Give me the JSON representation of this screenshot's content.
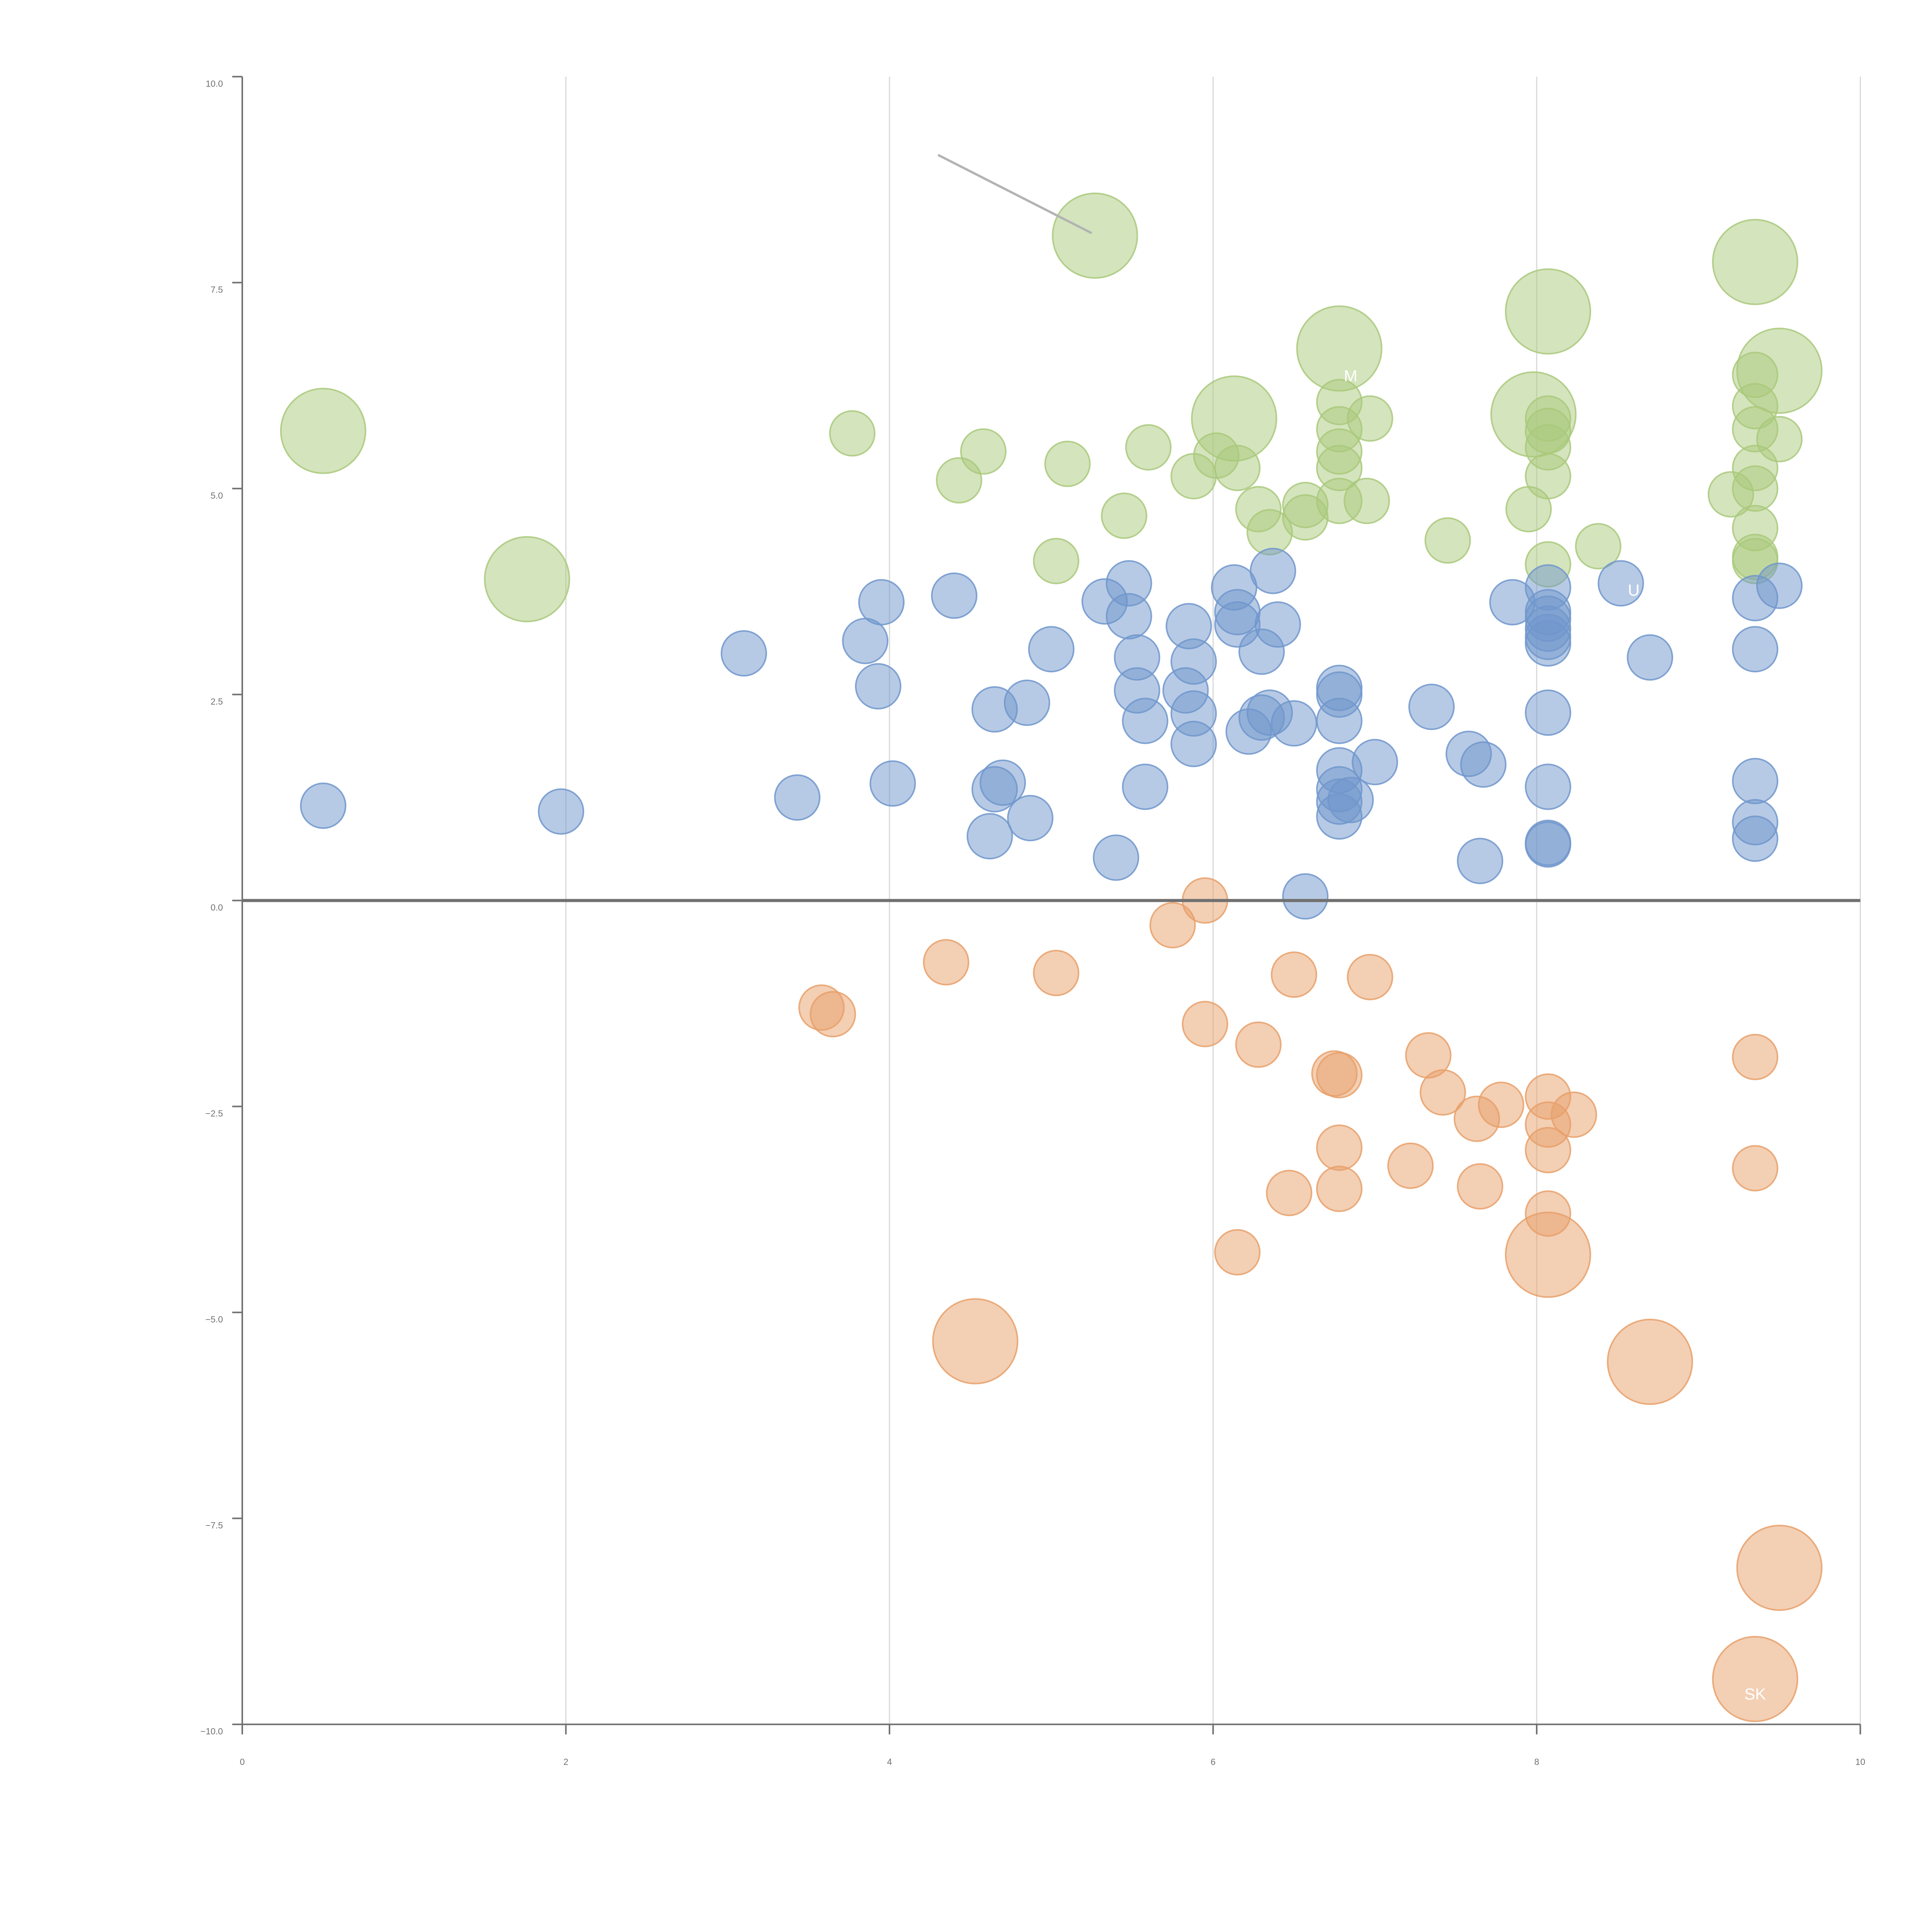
{
  "chart_data": {
    "type": "scatter",
    "title": "",
    "xlabel": "",
    "ylabel": "",
    "xlim": [
      0,
      10
    ],
    "ylim": [
      -10,
      10
    ],
    "x_ticks": [
      "0",
      "2",
      "4",
      "6",
      "8",
      "10"
    ],
    "y_ticks": [
      "10.0",
      "7.5",
      "5.0",
      "2.5",
      "0.0",
      "−2.5",
      "−5.0",
      "−7.5",
      "−10.0"
    ],
    "colors": {
      "green": "#a9c97b",
      "blue": "#7096cc",
      "orange": "#e8a06a",
      "grid": "#d9d9d9",
      "axis": "#707070"
    },
    "series": [
      {
        "name": "green",
        "points": [
          [
            0.5,
            5.7,
            0.85
          ],
          [
            1.76,
            3.9,
            0.85
          ],
          [
            3.77,
            5.67,
            0.45
          ],
          [
            4.43,
            5.1,
            0.45
          ],
          [
            4.58,
            5.45,
            0.45
          ],
          [
            5.03,
            4.12,
            0.45
          ],
          [
            5.1,
            5.3,
            0.45
          ],
          [
            5.27,
            8.07,
            0.85
          ],
          [
            5.45,
            4.67,
            0.45
          ],
          [
            5.6,
            5.5,
            0.45
          ],
          [
            5.88,
            5.15,
            0.45
          ],
          [
            6.02,
            5.4,
            0.45
          ],
          [
            6.13,
            5.85,
            0.85
          ],
          [
            6.15,
            5.25,
            0.45
          ],
          [
            6.28,
            4.75,
            0.45
          ],
          [
            6.35,
            4.47,
            0.45
          ],
          [
            6.57,
            4.8,
            0.45
          ],
          [
            6.57,
            4.65,
            0.45
          ],
          [
            6.78,
            6.7,
            0.85
          ],
          [
            6.78,
            6.05,
            0.45
          ],
          [
            6.78,
            5.72,
            0.45
          ],
          [
            6.78,
            5.45,
            0.45
          ],
          [
            6.78,
            5.25,
            0.45
          ],
          [
            6.78,
            4.85,
            0.45
          ],
          [
            6.97,
            5.85,
            0.45
          ],
          [
            6.95,
            4.85,
            0.45
          ],
          [
            7.45,
            4.37,
            0.45
          ],
          [
            7.98,
            5.9,
            0.85
          ],
          [
            7.95,
            4.75,
            0.45
          ],
          [
            8.07,
            7.15,
            0.85
          ],
          [
            8.07,
            5.85,
            0.45
          ],
          [
            8.07,
            5.7,
            0.45
          ],
          [
            8.07,
            5.5,
            0.45
          ],
          [
            8.07,
            5.15,
            0.45
          ],
          [
            8.07,
            4.08,
            0.45
          ],
          [
            8.38,
            4.3,
            0.45
          ],
          [
            9.2,
            4.93,
            0.45
          ],
          [
            9.35,
            7.75,
            0.85
          ],
          [
            9.35,
            6.38,
            0.45
          ],
          [
            9.35,
            6.0,
            0.45
          ],
          [
            9.35,
            5.72,
            0.45
          ],
          [
            9.35,
            5.25,
            0.45
          ],
          [
            9.35,
            5.0,
            0.45
          ],
          [
            9.35,
            4.52,
            0.45
          ],
          [
            9.35,
            4.17,
            0.45
          ],
          [
            9.35,
            4.12,
            0.45
          ],
          [
            9.5,
            6.43,
            0.85
          ],
          [
            9.5,
            5.6,
            0.45
          ]
        ]
      },
      {
        "name": "blue",
        "points": [
          [
            0.5,
            1.15,
            0.45
          ],
          [
            1.97,
            1.08,
            0.45
          ],
          [
            3.1,
            3.0,
            0.45
          ],
          [
            3.43,
            1.25,
            0.45
          ],
          [
            3.85,
            3.15,
            0.45
          ],
          [
            3.93,
            2.6,
            0.45
          ],
          [
            3.95,
            3.62,
            0.45
          ],
          [
            4.02,
            1.42,
            0.45
          ],
          [
            4.4,
            3.7,
            0.45
          ],
          [
            4.62,
            0.78,
            0.45
          ],
          [
            4.65,
            2.32,
            0.45
          ],
          [
            4.65,
            1.35,
            0.45
          ],
          [
            4.7,
            1.43,
            0.45
          ],
          [
            4.85,
            2.4,
            0.45
          ],
          [
            4.87,
            1.0,
            0.45
          ],
          [
            5.0,
            3.05,
            0.45
          ],
          [
            5.33,
            3.63,
            0.45
          ],
          [
            5.4,
            0.52,
            0.45
          ],
          [
            5.48,
            3.85,
            0.45
          ],
          [
            5.48,
            3.45,
            0.45
          ],
          [
            5.53,
            2.95,
            0.45
          ],
          [
            5.53,
            2.55,
            0.45
          ],
          [
            5.58,
            2.18,
            0.45
          ],
          [
            5.58,
            1.38,
            0.45
          ],
          [
            5.83,
            2.55,
            0.45
          ],
          [
            5.85,
            3.33,
            0.45
          ],
          [
            5.88,
            2.9,
            0.45
          ],
          [
            5.88,
            2.27,
            0.45
          ],
          [
            5.88,
            1.9,
            0.45
          ],
          [
            6.13,
            3.8,
            0.45
          ],
          [
            6.15,
            3.5,
            0.45
          ],
          [
            6.15,
            3.35,
            0.45
          ],
          [
            6.22,
            2.05,
            0.45
          ],
          [
            6.3,
            3.02,
            0.45
          ],
          [
            6.3,
            2.22,
            0.45
          ],
          [
            6.35,
            2.28,
            0.45
          ],
          [
            6.37,
            4.0,
            0.45
          ],
          [
            6.4,
            3.35,
            0.45
          ],
          [
            6.5,
            2.15,
            0.45
          ],
          [
            6.57,
            0.05,
            0.45
          ],
          [
            6.78,
            2.58,
            0.45
          ],
          [
            6.78,
            2.5,
            0.45
          ],
          [
            6.78,
            2.18,
            0.45
          ],
          [
            6.78,
            1.58,
            0.45
          ],
          [
            6.78,
            1.35,
            0.45
          ],
          [
            6.78,
            1.2,
            0.45
          ],
          [
            6.78,
            1.02,
            0.45
          ],
          [
            6.85,
            1.22,
            0.45
          ],
          [
            7.0,
            1.68,
            0.45
          ],
          [
            7.35,
            2.35,
            0.45
          ],
          [
            7.58,
            1.78,
            0.45
          ],
          [
            7.65,
            0.48,
            0.45
          ],
          [
            7.67,
            1.65,
            0.45
          ],
          [
            7.85,
            3.62,
            0.45
          ],
          [
            8.07,
            3.8,
            0.45
          ],
          [
            8.07,
            3.5,
            0.45
          ],
          [
            8.07,
            3.42,
            0.45
          ],
          [
            8.07,
            3.3,
            0.45
          ],
          [
            8.07,
            3.2,
            0.45
          ],
          [
            8.07,
            3.12,
            0.45
          ],
          [
            8.07,
            2.28,
            0.45
          ],
          [
            8.07,
            1.38,
            0.45
          ],
          [
            8.07,
            0.7,
            0.45
          ],
          [
            8.07,
            0.68,
            0.45
          ],
          [
            8.52,
            3.85,
            0.45
          ],
          [
            8.7,
            2.95,
            0.45
          ],
          [
            9.35,
            3.67,
            0.45
          ],
          [
            9.35,
            3.05,
            0.45
          ],
          [
            9.35,
            1.45,
            0.45
          ],
          [
            9.35,
            0.95,
            0.45
          ],
          [
            9.35,
            0.75,
            0.45
          ],
          [
            9.5,
            3.82,
            0.45
          ]
        ]
      },
      {
        "name": "orange",
        "points": [
          [
            3.58,
            -1.3,
            0.45
          ],
          [
            3.65,
            -1.38,
            0.45
          ],
          [
            4.35,
            -0.75,
            0.45
          ],
          [
            4.53,
            -5.35,
            0.85
          ],
          [
            5.03,
            -0.88,
            0.45
          ],
          [
            5.75,
            -0.3,
            0.45
          ],
          [
            5.95,
            0.0,
            0.45
          ],
          [
            5.95,
            -1.5,
            0.45
          ],
          [
            6.15,
            -4.27,
            0.45
          ],
          [
            6.28,
            -1.75,
            0.45
          ],
          [
            6.47,
            -3.55,
            0.45
          ],
          [
            6.5,
            -0.9,
            0.45
          ],
          [
            6.75,
            -2.1,
            0.45
          ],
          [
            6.78,
            -2.12,
            0.45
          ],
          [
            6.78,
            -3.0,
            0.45
          ],
          [
            6.78,
            -3.5,
            0.45
          ],
          [
            6.97,
            -0.93,
            0.45
          ],
          [
            7.22,
            -3.22,
            0.45
          ],
          [
            7.33,
            -1.88,
            0.45
          ],
          [
            7.42,
            -2.33,
            0.45
          ],
          [
            7.63,
            -2.65,
            0.45
          ],
          [
            7.65,
            -3.47,
            0.45
          ],
          [
            7.78,
            -2.48,
            0.45
          ],
          [
            8.07,
            -2.38,
            0.45
          ],
          [
            8.07,
            -2.72,
            0.45
          ],
          [
            8.07,
            -3.03,
            0.45
          ],
          [
            8.07,
            -3.8,
            0.45
          ],
          [
            8.07,
            -4.3,
            0.85
          ],
          [
            8.23,
            -2.6,
            0.45
          ],
          [
            8.7,
            -5.6,
            0.85
          ],
          [
            9.35,
            -1.9,
            0.45
          ],
          [
            9.35,
            -3.25,
            0.45
          ],
          [
            9.35,
            -9.45,
            0.85
          ],
          [
            9.5,
            -8.1,
            0.85
          ]
        ]
      }
    ],
    "annotations": [
      "M",
      "U",
      "SK"
    ]
  }
}
